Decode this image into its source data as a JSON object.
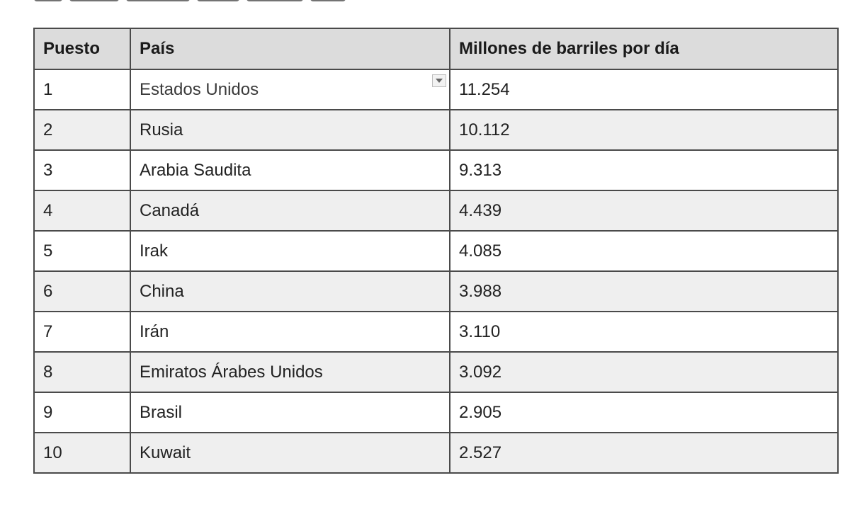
{
  "table": {
    "headers": [
      "Puesto",
      "País",
      "Millones de barriles por día"
    ],
    "rows": [
      {
        "rank": "1",
        "country": "Estados Unidos",
        "value": "11.254"
      },
      {
        "rank": "2",
        "country": "Rusia",
        "value": "10.112"
      },
      {
        "rank": "3",
        "country": "Arabia Saudita",
        "value": "9.313"
      },
      {
        "rank": "4",
        "country": "Canadá",
        "value": "4.439"
      },
      {
        "rank": "5",
        "country": "Irak",
        "value": "4.085"
      },
      {
        "rank": "6",
        "country": "China",
        "value": "3.988"
      },
      {
        "rank": "7",
        "country": "Irán",
        "value": "3.110"
      },
      {
        "rank": "8",
        "country": "Emiratos Árabes Unidos",
        "value": "3.092"
      },
      {
        "rank": "9",
        "country": "Brasil",
        "value": "2.905"
      },
      {
        "rank": "10",
        "country": "Kuwait",
        "value": "2.527"
      }
    ]
  },
  "icons": {
    "cell_dropdown": "chevron-down-icon"
  },
  "colors": {
    "header_bg": "#dcdcdc",
    "row_alt_bg": "#efefef",
    "border": "#4a4a4a"
  }
}
